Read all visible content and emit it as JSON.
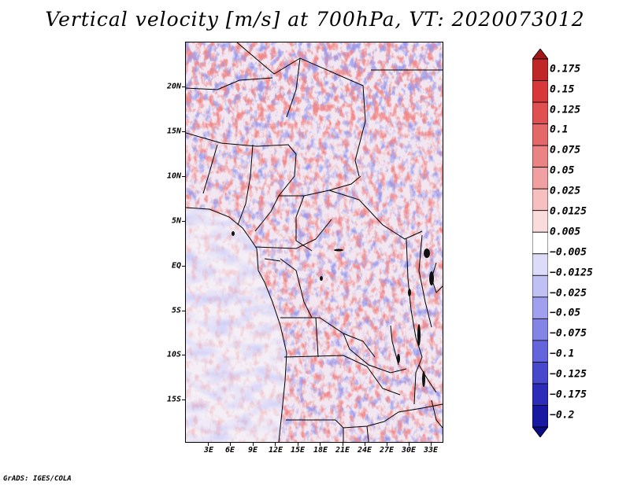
{
  "title": "Vertical velocity [m/s] at 700hPa, VT: 2020073012",
  "variable": "Vertical velocity",
  "units": "m/s",
  "level": "700hPa",
  "valid_time": "2020073012",
  "footer": "GrADS: IGES/COLA",
  "map": {
    "lat_labels": [
      "20N",
      "15N",
      "10N",
      "5N",
      "EQ",
      "5S",
      "10S",
      "15S"
    ],
    "lat_values": [
      20,
      15,
      10,
      5,
      0,
      -5,
      -10,
      -15
    ],
    "lon_labels": [
      "3E",
      "6E",
      "9E",
      "12E",
      "15E",
      "18E",
      "21E",
      "24E",
      "27E",
      "30E",
      "33E"
    ],
    "lon_values": [
      3,
      6,
      9,
      12,
      15,
      18,
      21,
      24,
      27,
      30,
      33
    ],
    "lat_range": [
      -19.8,
      24.8
    ],
    "lon_range": [
      0.1,
      34.4
    ]
  },
  "colorbar": {
    "labels": [
      "0.175",
      "0.15",
      "0.125",
      "0.1",
      "0.075",
      "0.05",
      "0.025",
      "0.0125",
      "0.005",
      "−0.005",
      "−0.0125",
      "−0.025",
      "−0.05",
      "−0.075",
      "−0.1",
      "−0.125",
      "−0.175",
      "−0.2"
    ],
    "colors": [
      "#a01818",
      "#c02828",
      "#d83838",
      "#e05050",
      "#e46868",
      "#ea8484",
      "#f0a0a0",
      "#f6c0c0",
      "#fadcdc",
      "#ffffff",
      "#dcdcf8",
      "#c0c0f4",
      "#a0a0ee",
      "#8484e6",
      "#6464dc",
      "#4848cc",
      "#2c2cb8",
      "#1818a0",
      "#0c0c80"
    ]
  }
}
